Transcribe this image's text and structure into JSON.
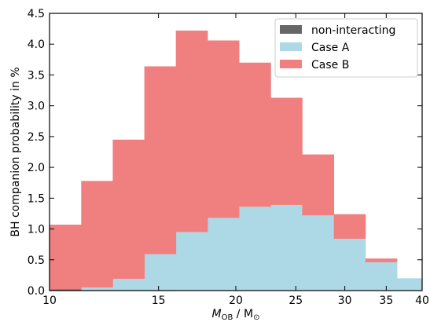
{
  "chart_data": {
    "type": "bar",
    "subtype": "stacked-histogram",
    "x_scale": "log",
    "xlim": [
      10,
      40
    ],
    "ylim": [
      0,
      4.5
    ],
    "xticks": [
      10,
      15,
      20,
      25,
      30,
      35,
      40
    ],
    "xtick_labels": [
      "10",
      "15",
      "20",
      "25",
      "30",
      "35",
      "40"
    ],
    "yticks": [
      0.0,
      0.5,
      1.0,
      1.5,
      2.0,
      2.5,
      3.0,
      3.5,
      4.0,
      4.5
    ],
    "ytick_labels": [
      "0.0",
      "0.5",
      "1.0",
      "1.5",
      "2.0",
      "2.5",
      "3.0",
      "3.5",
      "4.0",
      "4.5"
    ],
    "xlabel_main": "M",
    "xlabel_sub": "OB",
    "xlabel_rest": " / M",
    "xlabel_sun": "⊙",
    "ylabel": "BH companion probability in %",
    "bin_edges": [
      10,
      11.25,
      12.65,
      14.23,
      16.0,
      18.0,
      20.24,
      22.77,
      25.6,
      28.8,
      32.39,
      36.43,
      40
    ],
    "series": [
      {
        "name": "non-interacting",
        "color": "#666666",
        "values": [
          0.02,
          0.01,
          0.01,
          0.01,
          0.0,
          0.0,
          0.0,
          0.0,
          0.0,
          0.0,
          0.0,
          0.0
        ]
      },
      {
        "name": "Case A",
        "color": "#add8e6",
        "values": [
          0.0,
          0.04,
          0.18,
          0.58,
          0.95,
          1.18,
          1.36,
          1.39,
          1.22,
          0.84,
          0.46,
          0.2
        ]
      },
      {
        "name": "Case B",
        "color": "#f08080",
        "values": [
          1.05,
          1.73,
          2.26,
          3.05,
          3.27,
          2.88,
          2.34,
          1.74,
          0.99,
          0.4,
          0.06,
          0.0
        ]
      }
    ],
    "legend_position": "top-right",
    "grid": false
  }
}
